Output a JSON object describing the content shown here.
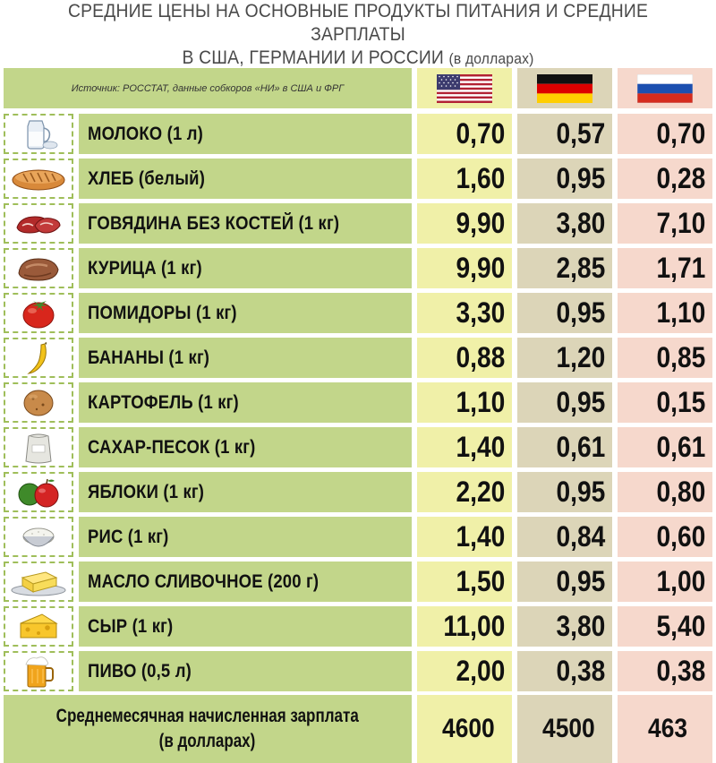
{
  "title": {
    "line1": "СРЕДНИЕ ЦЕНЫ НА ОСНОВНЫЕ ПРОДУКТЫ ПИТАНИЯ И СРЕДНИЕ ЗАРПЛАТЫ",
    "line2": "В США, ГЕРМАНИИ И РОССИИ",
    "line2_suffix": "(в долларах)"
  },
  "source": "Источник: РОССТАТ, данные собкоров «НИ» в США и ФРГ",
  "flags": [
    {
      "country": "usa",
      "icon": "usa-flag-icon"
    },
    {
      "country": "germany",
      "icon": "germany-flag-icon"
    },
    {
      "country": "russia",
      "icon": "russia-flag-icon"
    }
  ],
  "rows": [
    {
      "name": "МОЛОКО (1 л)",
      "icon": "milk-icon",
      "us": "0,70",
      "de": "0,57",
      "ru": "0,70"
    },
    {
      "name": "ХЛЕБ (белый)",
      "icon": "bread-icon",
      "us": "1,60",
      "de": "0,95",
      "ru": "0,28"
    },
    {
      "name": "ГОВЯДИНА БЕЗ КОСТЕЙ (1 кг)",
      "icon": "beef-icon",
      "us": "9,90",
      "de": "3,80",
      "ru": "7,10"
    },
    {
      "name": "КУРИЦА (1 кг)",
      "icon": "chicken-icon",
      "us": "9,90",
      "de": "2,85",
      "ru": "1,71"
    },
    {
      "name": "ПОМИДОРЫ (1 кг)",
      "icon": "tomato-icon",
      "us": "3,30",
      "de": "0,95",
      "ru": "1,10"
    },
    {
      "name": "БАНАНЫ (1 кг)",
      "icon": "banana-icon",
      "us": "0,88",
      "de": "1,20",
      "ru": "0,85"
    },
    {
      "name": "КАРТОФЕЛЬ (1 кг)",
      "icon": "potato-icon",
      "us": "1,10",
      "de": "0,95",
      "ru": "0,15"
    },
    {
      "name": "САХАР-ПЕСОК (1 кг)",
      "icon": "sugar-bag-icon",
      "us": "1,40",
      "de": "0,61",
      "ru": "0,61"
    },
    {
      "name": "ЯБЛОКИ (1 кг)",
      "icon": "apple-icon",
      "us": "2,20",
      "de": "0,95",
      "ru": "0,80"
    },
    {
      "name": "РИС (1 кг)",
      "icon": "rice-bowl-icon",
      "us": "1,40",
      "de": "0,84",
      "ru": "0,60"
    },
    {
      "name": "МАСЛО СЛИВОЧНОЕ (200 г)",
      "icon": "butter-icon",
      "us": "1,50",
      "de": "0,95",
      "ru": "1,00"
    },
    {
      "name": "СЫР (1 кг)",
      "icon": "cheese-icon",
      "us": "11,00",
      "de": "3,80",
      "ru": "5,40"
    },
    {
      "name": "ПИВО (0,5 л)",
      "icon": "beer-mug-icon",
      "us": "2,00",
      "de": "0,38",
      "ru": "0,38"
    }
  ],
  "salary": {
    "label_line1": "Среднемесячная начисленная зарплата",
    "label_line2": "(в долларах)",
    "us": "4600",
    "de": "4500",
    "ru": "463"
  },
  "colors": {
    "label_green": "#c2d68a",
    "usa_column": "#f0f0a8",
    "germany_column": "#dcd5b8",
    "russia_column": "#f6d8cc",
    "dashed_border": "#9fbe5a"
  }
}
